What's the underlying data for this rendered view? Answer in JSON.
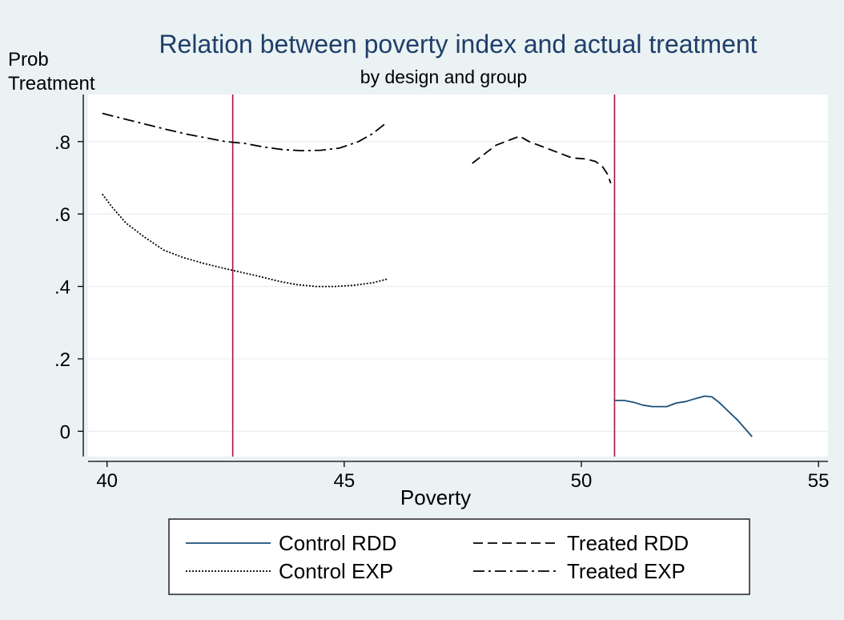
{
  "chart_data": {
    "type": "line",
    "title": "Relation between poverty index and actual treatment",
    "subtitle": "by design and group",
    "ylabel_line1": "Prob",
    "ylabel_line2": "Treatment",
    "xlabel": "Poverty",
    "xlim": [
      39.6,
      55.2
    ],
    "ylim": [
      -0.07,
      0.93
    ],
    "x_ticks": [
      40,
      45,
      50,
      55
    ],
    "x_tick_labels": [
      "40",
      "45",
      "50",
      "55"
    ],
    "y_ticks": [
      0,
      0.2,
      0.4,
      0.6,
      0.8
    ],
    "y_tick_labels": [
      "0",
      ".2",
      ".4",
      ".6",
      ".8"
    ],
    "grid": "horizontal",
    "legend_position": "bottom",
    "vertical_lines": [
      42.65,
      50.7
    ],
    "colors": {
      "background": "#eaf2f3",
      "plot": "#ffffff",
      "title": "#1f3f6a",
      "control_rdd": "#1a4f7a",
      "black": "#000000",
      "cutoff": "#b0103a",
      "grid": "#e6eef0"
    },
    "series": [
      {
        "name": "Control RDD",
        "style": "solid",
        "color": "#1a4f7a",
        "x": [
          50.7,
          50.9,
          51.1,
          51.3,
          51.5,
          51.8,
          52.0,
          52.2,
          52.4,
          52.6,
          52.75,
          52.9,
          53.1,
          53.3,
          53.5,
          53.6
        ],
        "y": [
          0.085,
          0.085,
          0.08,
          0.072,
          0.068,
          0.068,
          0.078,
          0.082,
          0.09,
          0.097,
          0.095,
          0.08,
          0.055,
          0.03,
          0.0,
          -0.015
        ]
      },
      {
        "name": "Treated RDD",
        "style": "dashed",
        "color": "#000000",
        "x": [
          47.7,
          47.9,
          48.2,
          48.5,
          48.7,
          48.9,
          49.2,
          49.5,
          49.8,
          50.1,
          50.3,
          50.45,
          50.55,
          50.62
        ],
        "y": [
          0.74,
          0.76,
          0.79,
          0.805,
          0.815,
          0.8,
          0.785,
          0.77,
          0.755,
          0.752,
          0.745,
          0.73,
          0.71,
          0.685
        ]
      },
      {
        "name": "Control EXP",
        "style": "dotted",
        "color": "#000000",
        "x": [
          39.9,
          40.1,
          40.4,
          40.8,
          41.2,
          41.6,
          42.0,
          42.4,
          42.8,
          43.2,
          43.6,
          44.0,
          44.4,
          44.8,
          45.2,
          45.6,
          45.9
        ],
        "y": [
          0.655,
          0.62,
          0.575,
          0.535,
          0.5,
          0.48,
          0.465,
          0.452,
          0.44,
          0.428,
          0.415,
          0.405,
          0.4,
          0.4,
          0.403,
          0.41,
          0.42
        ]
      },
      {
        "name": "Treated EXP",
        "style": "dashdot",
        "color": "#000000",
        "x": [
          39.9,
          40.2,
          40.5,
          40.9,
          41.3,
          41.7,
          42.1,
          42.5,
          42.9,
          43.3,
          43.7,
          44.1,
          44.5,
          44.9,
          45.3,
          45.6,
          45.85
        ],
        "y": [
          0.878,
          0.868,
          0.858,
          0.845,
          0.832,
          0.82,
          0.81,
          0.8,
          0.795,
          0.785,
          0.778,
          0.775,
          0.776,
          0.782,
          0.8,
          0.822,
          0.848
        ]
      }
    ]
  },
  "legend": {
    "items": [
      {
        "label": "Control RDD",
        "style": "solid",
        "color": "#1a4f7a"
      },
      {
        "label": "Treated RDD",
        "style": "dashed",
        "color": "#000000"
      },
      {
        "label": "Control EXP",
        "style": "dotted",
        "color": "#000000"
      },
      {
        "label": "Treated EXP",
        "style": "dashdot",
        "color": "#000000"
      }
    ]
  }
}
